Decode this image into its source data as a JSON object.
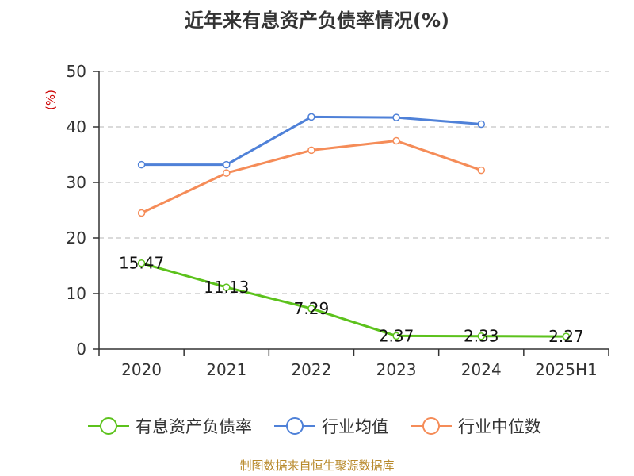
{
  "chart_data": {
    "type": "line",
    "title": "近年来有息资产负债率情况(%)",
    "ylabel": "(%)",
    "xlabel": "",
    "categories": [
      "2020",
      "2021",
      "2022",
      "2023",
      "2024",
      "2025H1"
    ],
    "ylim": [
      0,
      50
    ],
    "yticks": [
      0,
      10,
      20,
      30,
      40,
      50
    ],
    "grid": true,
    "legend_position": "bottom",
    "series": [
      {
        "name": "有息资产负债率",
        "color": "#5cc21c",
        "values": [
          15.47,
          11.13,
          7.29,
          2.37,
          2.33,
          2.27
        ],
        "labels": [
          "15.47",
          "11.13",
          "7.29",
          "2.37",
          "2.33",
          "2.27"
        ]
      },
      {
        "name": "行业均值",
        "color": "#4f81d8",
        "values": [
          33.2,
          33.2,
          41.8,
          41.7,
          40.5,
          null
        ]
      },
      {
        "name": "行业中位数",
        "color": "#f58c58",
        "values": [
          24.5,
          31.7,
          35.8,
          37.5,
          32.2,
          null
        ]
      }
    ],
    "source": "制图数据来自恒生聚源数据库"
  }
}
